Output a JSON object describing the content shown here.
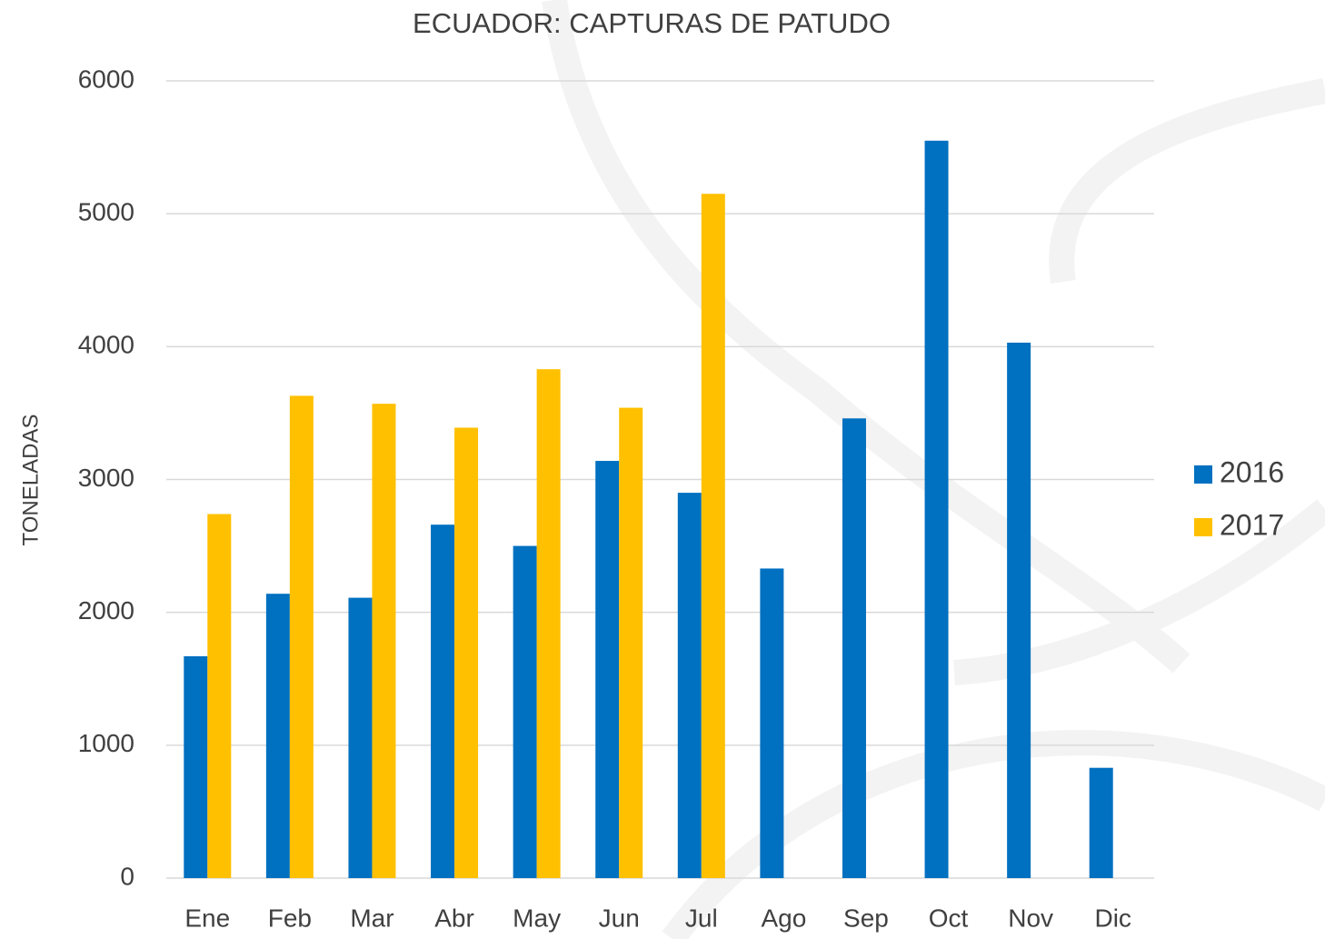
{
  "chart_data": {
    "type": "bar",
    "title": "ECUADOR: CAPTURAS DE PATUDO",
    "y_label": "TONELADAS",
    "categories": [
      "Ene",
      "Feb",
      "Mar",
      "Abr",
      "May",
      "Jun",
      "Jul",
      "Ago",
      "Sep",
      "Oct",
      "Nov",
      "Dic"
    ],
    "series": [
      {
        "name": "2016",
        "color": "#0070c0",
        "values": [
          1670,
          2140,
          2110,
          2660,
          2500,
          3140,
          2900,
          2330,
          3460,
          5550,
          4030,
          830
        ]
      },
      {
        "name": "2017",
        "color": "#ffc000",
        "values": [
          2740,
          3630,
          3570,
          3390,
          3830,
          3540,
          5150,
          null,
          null,
          null,
          null,
          null
        ]
      }
    ],
    "ylim": [
      0,
      6000
    ],
    "yticks": [
      0,
      1000,
      2000,
      3000,
      4000,
      5000,
      6000
    ],
    "grid": true,
    "legend": "right"
  }
}
